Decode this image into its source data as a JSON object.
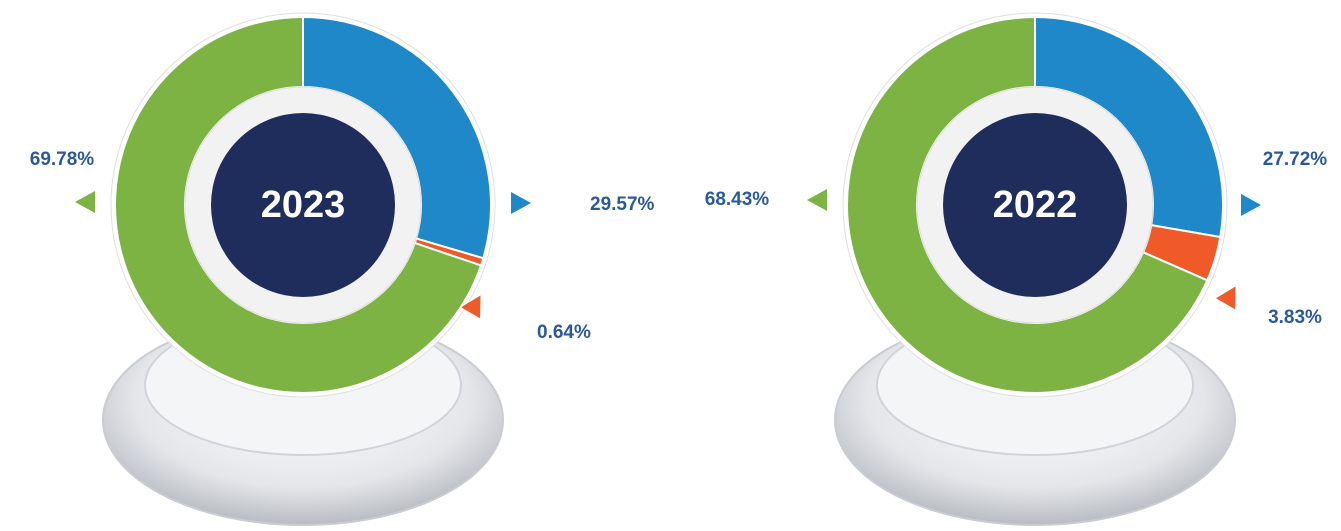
{
  "chart_data": [
    {
      "type": "pie",
      "title": "2023",
      "values": [
        29.57,
        0.64,
        69.78
      ],
      "value_labels": [
        "29.57%",
        "0.64%",
        "69.78%"
      ],
      "colors": [
        "#1e88c8",
        "#f05a28",
        "#7cb342"
      ]
    },
    {
      "type": "pie",
      "title": "2022",
      "values": [
        27.72,
        3.83,
        68.43
      ],
      "value_labels": [
        "27.72%",
        "3.83%",
        "68.43%"
      ],
      "colors": [
        "#1e88c8",
        "#f05a28",
        "#7cb342"
      ]
    }
  ]
}
